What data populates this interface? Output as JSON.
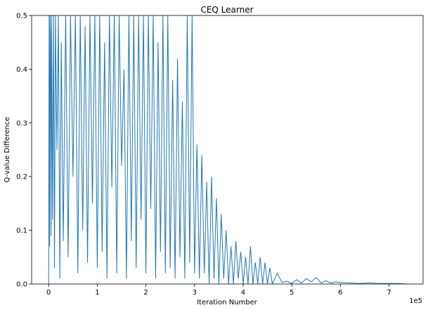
{
  "chart_data": {
    "type": "line",
    "title": "CEQ Learner",
    "xlabel": "Iteration Number",
    "ylabel": "Q-value Difference",
    "x_offset_label": "1e5",
    "xlim": [
      -0.35,
      7.7
    ],
    "ylim": [
      0,
      0.5
    ],
    "x_ticks": [
      0,
      1,
      2,
      3,
      4,
      5,
      6,
      7
    ],
    "x_tick_labels": [
      "0",
      "1",
      "2",
      "3",
      "4",
      "5",
      "6",
      "7"
    ],
    "y_ticks": [
      0.0,
      0.1,
      0.2,
      0.3,
      0.4,
      0.5
    ],
    "y_tick_labels": [
      "0.0",
      "0.1",
      "0.2",
      "0.3",
      "0.4",
      "0.5"
    ],
    "grid": false,
    "line_color": "#1f77b4",
    "series": [
      {
        "x": [
          0.0,
          0.01,
          0.02,
          0.03,
          0.04,
          0.05,
          0.06,
          0.08,
          0.1,
          0.12,
          0.14,
          0.17,
          0.2,
          0.23,
          0.26,
          0.3,
          0.35,
          0.4,
          0.45,
          0.5,
          0.55,
          0.6,
          0.65,
          0.7,
          0.75,
          0.8,
          0.85,
          0.9,
          0.95,
          1.0,
          1.05,
          1.1,
          1.15,
          1.2,
          1.25,
          1.3,
          1.35,
          1.4,
          1.45,
          1.5,
          1.55,
          1.6,
          1.65,
          1.7,
          1.75,
          1.8,
          1.85,
          1.9,
          1.95,
          2.0,
          2.05,
          2.1,
          2.15,
          2.2,
          2.25,
          2.3,
          2.35,
          2.4,
          2.45,
          2.5,
          2.55,
          2.6,
          2.65,
          2.7,
          2.75,
          2.8,
          2.85,
          2.9,
          2.95,
          3.0,
          3.05,
          3.1,
          3.15,
          3.2,
          3.25,
          3.3,
          3.35,
          3.4,
          3.45,
          3.5,
          3.55,
          3.6,
          3.65,
          3.7,
          3.75,
          3.8,
          3.85,
          3.9,
          3.95,
          4.0,
          4.05,
          4.1,
          4.15,
          4.2,
          4.25,
          4.3,
          4.35,
          4.4,
          4.45,
          4.5,
          4.55,
          4.6,
          4.7,
          4.8,
          4.9,
          5.0,
          5.1,
          5.2,
          5.3,
          5.4,
          5.5,
          5.6,
          5.7,
          5.8,
          5.9,
          6.0,
          6.2,
          6.4,
          6.6,
          6.8,
          7.0,
          7.2,
          7.35
        ],
        "y": [
          0.0,
          0.5,
          0.07,
          0.5,
          0.45,
          0.09,
          0.5,
          0.12,
          0.5,
          0.03,
          0.5,
          0.25,
          0.5,
          0.01,
          0.45,
          0.08,
          0.5,
          0.05,
          0.5,
          0.2,
          0.5,
          0.02,
          0.5,
          0.1,
          0.48,
          0.04,
          0.5,
          0.15,
          0.5,
          0.03,
          0.5,
          0.06,
          0.45,
          0.01,
          0.5,
          0.18,
          0.5,
          0.02,
          0.5,
          0.22,
          0.4,
          0.01,
          0.5,
          0.08,
          0.5,
          0.03,
          0.5,
          0.12,
          0.5,
          0.02,
          0.5,
          0.14,
          0.5,
          0.01,
          0.45,
          0.06,
          0.5,
          0.02,
          0.5,
          0.03,
          0.38,
          0.01,
          0.42,
          0.05,
          0.34,
          0.01,
          0.5,
          0.04,
          0.5,
          0.02,
          0.26,
          0.01,
          0.24,
          0.02,
          0.19,
          0.0,
          0.2,
          0.01,
          0.16,
          0.0,
          0.13,
          0.01,
          0.1,
          0.0,
          0.07,
          0.0,
          0.08,
          0.01,
          0.06,
          0.0,
          0.05,
          0.0,
          0.07,
          0.0,
          0.04,
          0.0,
          0.05,
          0.0,
          0.04,
          0.0,
          0.03,
          0.0,
          0.02,
          0.003,
          0.005,
          0.001,
          0.008,
          0.002,
          0.01,
          0.004,
          0.012,
          0.002,
          0.006,
          0.002,
          0.004,
          0.003,
          0.002,
          0.001,
          0.002,
          0.001,
          0.001,
          0.001,
          0.0
        ]
      }
    ]
  }
}
